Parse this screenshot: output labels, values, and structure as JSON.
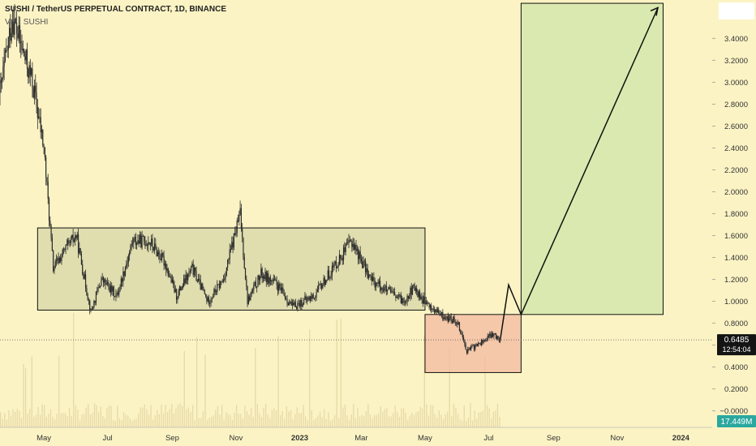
{
  "header": {
    "title": "SUSHI / TetherUS PERPETUAL CONTRACT, 1D, BINANCE",
    "vol_label": "Vol · SUSHI"
  },
  "price_box": {
    "price": "0.6485",
    "countdown": "12:54:04"
  },
  "volume_box": {
    "value": "17.449M"
  },
  "colors": {
    "background": "#fbf3c4",
    "range_box": "#d7d7a8",
    "loss_box": "#f3b9a0",
    "target_box": "#cfe6a8",
    "candle": "#2b2b2b",
    "volume": "#e7d9a6"
  },
  "chart_data": {
    "type": "candlestick",
    "title": "SUSHI / TetherUS PERPETUAL CONTRACT, 1D, BINANCE",
    "ylim": [
      -0.15,
      3.75
    ],
    "y_ticks": [
      "3.4000",
      "3.2000",
      "3.0000",
      "2.8000",
      "2.6000",
      "2.4000",
      "2.2000",
      "2.0000",
      "1.8000",
      "1.6000",
      "1.4000",
      "1.2000",
      "1.0000",
      "0.8000",
      "0.6000",
      "0.4000",
      "0.2000",
      "-0.0000"
    ],
    "x_ticks": [
      "May",
      "Jul",
      "Sep",
      "Nov",
      "2023",
      "Mar",
      "May",
      "Jul",
      "Sep",
      "Nov",
      "2024"
    ],
    "price_path": [
      [
        "2022-03-20",
        2.9
      ],
      [
        "2022-04-01",
        3.6
      ],
      [
        "2022-04-10",
        3.3
      ],
      [
        "2022-04-20",
        3.0
      ],
      [
        "2022-05-01",
        2.4
      ],
      [
        "2022-05-10",
        1.3
      ],
      [
        "2022-05-20",
        1.45
      ],
      [
        "2022-06-01",
        1.6
      ],
      [
        "2022-06-15",
        0.9
      ],
      [
        "2022-06-25",
        1.2
      ],
      [
        "2022-07-10",
        1.05
      ],
      [
        "2022-07-25",
        1.55
      ],
      [
        "2022-08-10",
        1.55
      ],
      [
        "2022-08-25",
        1.35
      ],
      [
        "2022-09-05",
        1.05
      ],
      [
        "2022-09-20",
        1.3
      ],
      [
        "2022-10-05",
        1.0
      ],
      [
        "2022-10-20",
        1.2
      ],
      [
        "2022-11-05",
        1.8
      ],
      [
        "2022-11-12",
        1.0
      ],
      [
        "2022-11-25",
        1.25
      ],
      [
        "2022-12-10",
        1.15
      ],
      [
        "2022-12-25",
        0.95
      ],
      [
        "2023-01-15",
        1.05
      ],
      [
        "2023-02-05",
        1.35
      ],
      [
        "2023-02-20",
        1.55
      ],
      [
        "2023-03-10",
        1.2
      ],
      [
        "2023-03-25",
        1.1
      ],
      [
        "2023-04-10",
        1.0
      ],
      [
        "2023-04-20",
        1.12
      ],
      [
        "2023-05-05",
        0.95
      ],
      [
        "2023-05-20",
        0.85
      ],
      [
        "2023-06-01",
        0.82
      ],
      [
        "2023-06-10",
        0.55
      ],
      [
        "2023-06-20",
        0.6
      ],
      [
        "2023-07-05",
        0.7
      ],
      [
        "2023-07-12",
        0.65
      ]
    ],
    "range_box": {
      "from": "2022-04-25",
      "to": "2023-05-01",
      "low": 0.92,
      "high": 1.67
    },
    "loss_box": {
      "from": "2023-05-01",
      "to": "2023-08-01",
      "low": 0.35,
      "high": 0.88
    },
    "target_box": {
      "from": "2023-08-01",
      "to": "2023-12-15",
      "low": 0.88,
      "high": 3.72
    },
    "projection_path": [
      [
        "2023-07-12",
        0.65
      ],
      [
        "2023-07-20",
        1.15
      ],
      [
        "2023-08-01",
        0.88
      ],
      [
        "2023-12-10",
        3.68
      ]
    ],
    "current_price": 0.6485,
    "current_volume": "17.449M"
  }
}
